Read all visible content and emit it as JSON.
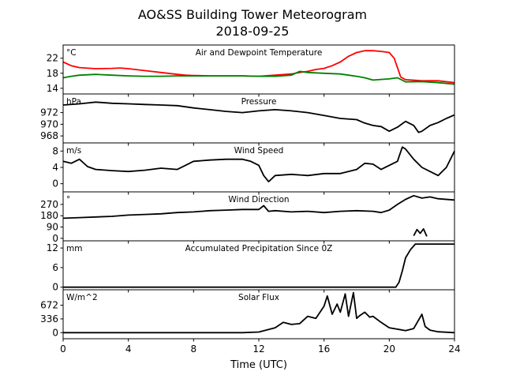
{
  "figure": {
    "title_line1": "AO&SS Building Tower Meteorogram",
    "title_line2": "2018-09-25",
    "xlabel": "Time (UTC)"
  },
  "chart_data": {
    "type": "line",
    "x_ticks": [
      0,
      4,
      8,
      12,
      16,
      20,
      24
    ],
    "xlim": [
      0,
      24
    ],
    "panels": [
      {
        "id": "temperature",
        "title": "Air and Dewpoint Temperature",
        "unit": "°C",
        "ylim": [
          12.5,
          25.5
        ],
        "y_ticks": [
          14,
          18,
          22
        ],
        "series": [
          {
            "color": "#ff0000",
            "x": [
              0,
              0.5,
              1,
              2,
              3,
              3.5,
              4,
              5,
              6,
              7,
              7.5,
              8,
              9,
              10,
              11,
              12,
              13,
              14,
              14.5,
              15,
              15.5,
              16,
              16.5,
              17,
              17.5,
              18,
              18.5,
              19,
              19.5,
              20,
              20.3,
              20.5,
              20.7,
              21,
              22,
              23,
              24
            ],
            "y": [
              21,
              20,
              19.5,
              19.2,
              19.3,
              19.4,
              19.2,
              18.7,
              18.2,
              17.7,
              17.5,
              17.4,
              17.3,
              17.3,
              17.3,
              17.2,
              17.5,
              17.8,
              18.2,
              18.5,
              19,
              19.3,
              20,
              21,
              22.5,
              23.5,
              24,
              24,
              23.8,
              23.5,
              22,
              19.5,
              17,
              16.3,
              16,
              16,
              15.5
            ]
          },
          {
            "color": "#008000",
            "x": [
              0,
              0.5,
              1,
              2,
              3,
              4,
              5,
              6,
              7,
              8,
              9,
              10,
              11,
              12,
              13,
              14,
              14.5,
              15,
              16,
              17,
              17.5,
              18,
              18.5,
              19,
              20,
              20.5,
              21,
              22,
              23,
              24
            ],
            "y": [
              16.8,
              17.2,
              17.5,
              17.7,
              17.5,
              17.3,
              17.2,
              17.2,
              17.3,
              17.3,
              17.3,
              17.3,
              17.3,
              17.2,
              17.2,
              17.5,
              18.5,
              18.2,
              18,
              17.8,
              17.5,
              17.2,
              16.8,
              16.2,
              16.5,
              16.8,
              15.7,
              15.8,
              15.5,
              15.1
            ]
          }
        ]
      },
      {
        "id": "pressure",
        "title": "Pressure",
        "unit": "hPa",
        "ylim": [
          966.8,
          975.2
        ],
        "y_ticks": [
          968,
          970,
          972
        ],
        "series": [
          {
            "color": "#000000",
            "x": [
              0,
              1,
              2,
              3,
              4,
              5,
              6,
              7,
              8,
              9,
              10,
              11,
              12,
              13,
              14,
              15,
              16,
              17,
              18,
              18.5,
              19,
              19.5,
              20,
              20.5,
              21,
              21.5,
              21.8,
              22,
              22.5,
              23,
              23.5,
              24
            ],
            "y": [
              973.3,
              973.5,
              973.8,
              973.6,
              973.5,
              973.4,
              973.3,
              973.2,
              972.8,
              972.5,
              972.2,
              972,
              972.3,
              972.5,
              972.3,
              972,
              971.5,
              971,
              970.8,
              970.2,
              969.8,
              969.6,
              968.8,
              969.5,
              970.5,
              969.8,
              968.6,
              968.8,
              969.8,
              970.3,
              971,
              971.6
            ]
          }
        ]
      },
      {
        "id": "wind_speed",
        "title": "Wind Speed",
        "unit": "m/s",
        "ylim": [
          -2,
          10
        ],
        "y_ticks": [
          0,
          4,
          8
        ],
        "series": [
          {
            "color": "#000000",
            "x": [
              0,
              0.5,
              1,
              1.5,
              2,
              3,
              4,
              5,
              6,
              7,
              8,
              9,
              10,
              11,
              11.5,
              12,
              12.3,
              12.6,
              13,
              14,
              15,
              16,
              17,
              18,
              18.5,
              19,
              19.5,
              20,
              20.5,
              20.8,
              21,
              21.5,
              22,
              22.5,
              23,
              23.5,
              24
            ],
            "y": [
              5.5,
              5,
              6,
              4.2,
              3.5,
              3.2,
              3,
              3.3,
              3.8,
              3.5,
              5.5,
              5.8,
              6,
              6,
              5.5,
              4.5,
              2,
              0.5,
              2,
              2.3,
              2,
              2.5,
              2.5,
              3.5,
              5,
              4.8,
              3.5,
              4.5,
              5.5,
              9,
              8.5,
              6,
              4,
              3,
              2,
              4,
              8
            ]
          }
        ]
      },
      {
        "id": "wind_direction",
        "title": "Wind Direction",
        "unit": "°",
        "ylim": [
          -20,
          370
        ],
        "y_ticks": [
          0,
          90,
          180,
          270
        ],
        "series": [
          {
            "color": "#000000",
            "x": [
              0,
              1,
              2,
              3,
              4,
              5,
              6,
              7,
              8,
              9,
              10,
              11,
              12,
              12.3,
              12.6,
              13,
              14,
              15,
              16,
              17,
              18,
              19,
              19.5,
              20,
              20.5,
              21,
              21.5,
              22,
              22.5,
              23,
              24
            ],
            "y": [
              160,
              165,
              170,
              175,
              185,
              190,
              195,
              205,
              210,
              220,
              225,
              230,
              230,
              260,
              215,
              220,
              210,
              215,
              205,
              215,
              220,
              215,
              205,
              225,
              270,
              310,
              340,
              320,
              330,
              315,
              305
            ]
          },
          {
            "color": "#000000",
            "x": [
              21.5,
              21.7,
              21.9,
              22.1,
              22.3
            ],
            "y": [
              20,
              70,
              40,
              75,
              15
            ]
          }
        ]
      },
      {
        "id": "precipitation",
        "title": "Accumulated Precipitation Since 0Z",
        "unit": "mm",
        "ylim": [
          -0.8,
          14.2
        ],
        "y_ticks": [
          0,
          6,
          12
        ],
        "series": [
          {
            "color": "#000000",
            "x": [
              0,
              20.4,
              20.6,
              20.8,
              21,
              21.3,
              21.6,
              22,
              24
            ],
            "y": [
              0,
              0,
              1.5,
              5,
              9,
              11.5,
              13.2,
              13.2,
              13.2
            ]
          }
        ]
      },
      {
        "id": "solar_flux",
        "title": "Solar Flux",
        "unit": "W/m^2",
        "ylim": [
          -150,
          1050
        ],
        "y_ticks": [
          0,
          336,
          672
        ],
        "series": [
          {
            "color": "#000000",
            "x": [
              0,
              11,
              12,
              13,
              13.5,
              14,
              14.5,
              15,
              15.5,
              16,
              16.2,
              16.5,
              16.8,
              17,
              17.3,
              17.5,
              17.8,
              18,
              18.2,
              18.5,
              18.8,
              19,
              19.5,
              20,
              21,
              21.5,
              22,
              22.2,
              22.5,
              23,
              24
            ],
            "y": [
              0,
              0,
              15,
              120,
              250,
              200,
              220,
              400,
              350,
              650,
              900,
              450,
              700,
              500,
              950,
              400,
              980,
              350,
              420,
              500,
              380,
              400,
              250,
              120,
              50,
              100,
              450,
              150,
              60,
              20,
              0
            ]
          }
        ]
      }
    ]
  }
}
